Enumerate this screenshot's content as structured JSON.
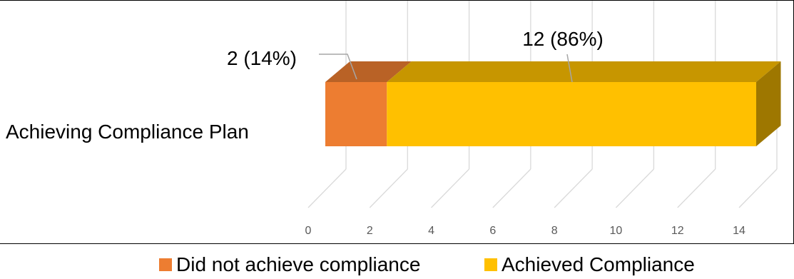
{
  "chart_data": {
    "type": "bar",
    "orientation": "horizontal",
    "stacked": true,
    "three_d": true,
    "categories": [
      "Achieving Compliance Plan"
    ],
    "series": [
      {
        "name": "Did not achieve compliance",
        "values": [
          2
        ],
        "label": "2 (14%)",
        "color": "#ED7D31"
      },
      {
        "name": "Achieved Compliance",
        "values": [
          12
        ],
        "label": "12 (86%)",
        "color": "#FFC000"
      }
    ],
    "x_ticks": [
      "0",
      "2",
      "4",
      "6",
      "8",
      "10",
      "12",
      "14"
    ],
    "xlim": [
      0,
      14
    ],
    "grid": true,
    "legend": "bottom"
  }
}
